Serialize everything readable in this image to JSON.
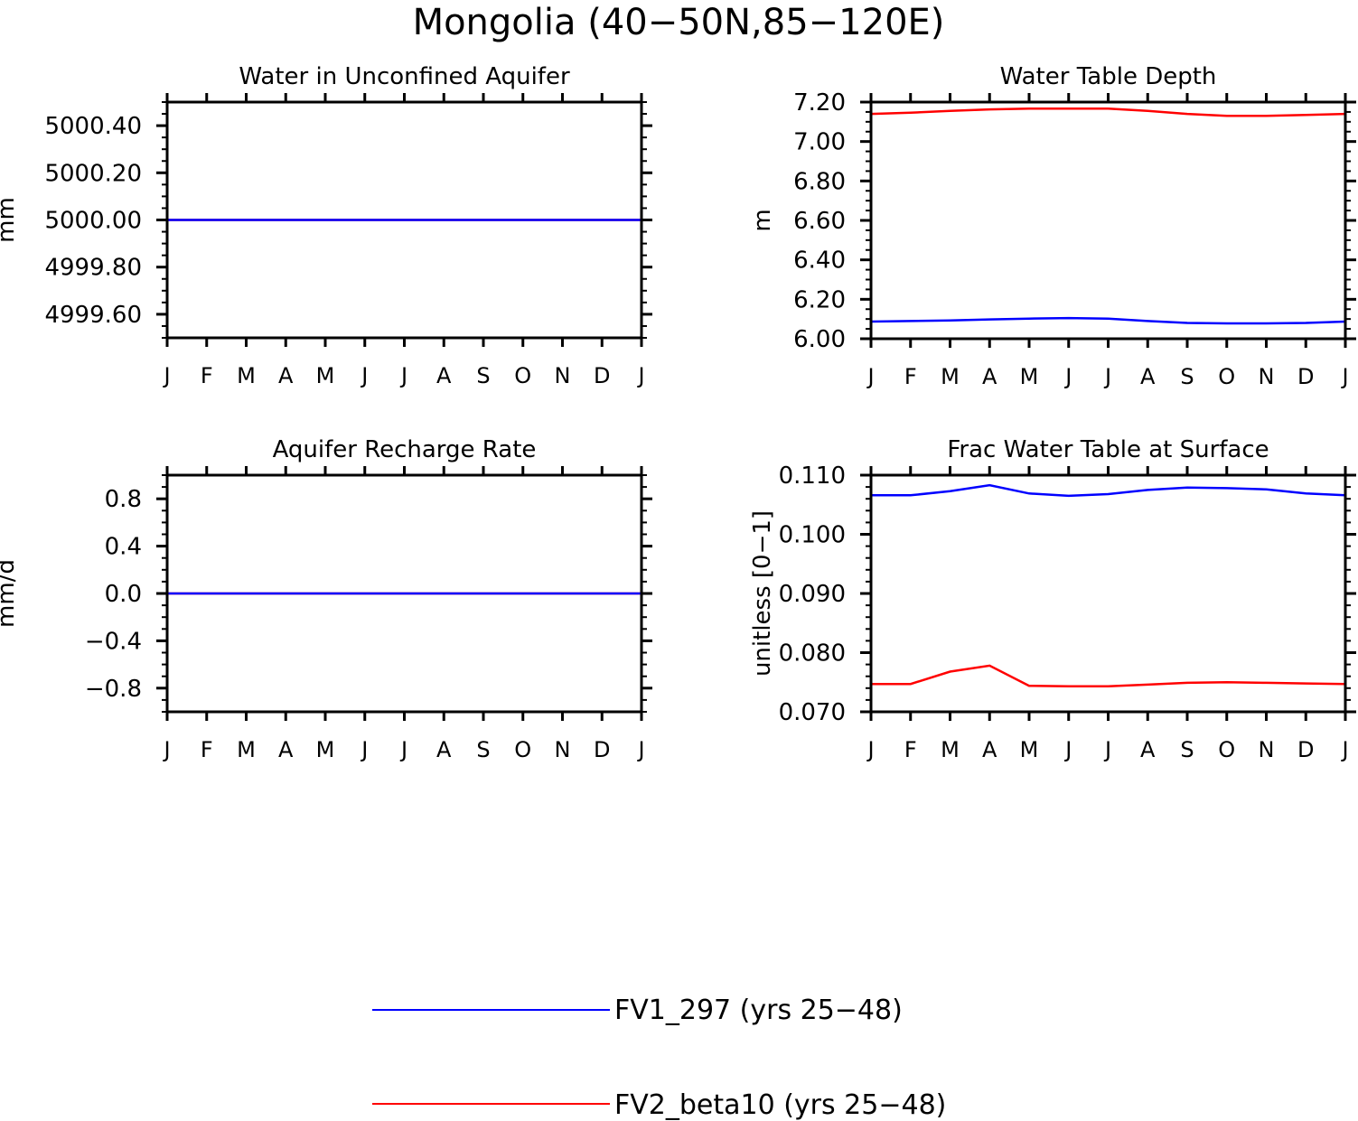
{
  "title": "Mongolia (40−50N,85−120E)",
  "legend": [
    {
      "label": "FV1_297 (yrs 25−48)",
      "color": "#0000ff"
    },
    {
      "label": "FV2_beta10 (yrs 25−48)",
      "color": "#ff0000"
    }
  ],
  "chart_data": [
    {
      "type": "line",
      "title": "Water in Unconfined Aquifer",
      "ylabel": "mm",
      "categories": [
        "J",
        "F",
        "M",
        "A",
        "M",
        "J",
        "J",
        "A",
        "S",
        "O",
        "N",
        "D",
        "J"
      ],
      "ylim": [
        4999.5,
        5000.5
      ],
      "yticks": [
        4999.6,
        4999.8,
        5000.0,
        5000.2,
        5000.4
      ],
      "ytick_labels": [
        "4999.60",
        "4999.80",
        "5000.00",
        "5000.20",
        "5000.40"
      ],
      "minor_per_major": 4,
      "series": [
        {
          "name": "FV2_beta10 (yrs 25−48)",
          "color": "#ff0000",
          "values": [
            5000,
            5000,
            5000,
            5000,
            5000,
            5000,
            5000,
            5000,
            5000,
            5000,
            5000,
            5000,
            5000
          ]
        },
        {
          "name": "FV1_297 (yrs 25−48)",
          "color": "#0000ff",
          "values": [
            5000,
            5000,
            5000,
            5000,
            5000,
            5000,
            5000,
            5000,
            5000,
            5000,
            5000,
            5000,
            5000
          ]
        }
      ]
    },
    {
      "type": "line",
      "title": "Water Table Depth",
      "ylabel": "m",
      "categories": [
        "J",
        "F",
        "M",
        "A",
        "M",
        "J",
        "J",
        "A",
        "S",
        "O",
        "N",
        "D",
        "J"
      ],
      "ylim": [
        6.0,
        7.2
      ],
      "yticks": [
        6.0,
        6.2,
        6.4,
        6.6,
        6.8,
        7.0,
        7.2
      ],
      "ytick_labels": [
        "6.00",
        "6.20",
        "6.40",
        "6.60",
        "6.80",
        "7.00",
        "7.20"
      ],
      "minor_per_major": 4,
      "series": [
        {
          "name": "FV1_297 (yrs 25−48)",
          "color": "#0000ff",
          "values": [
            6.087,
            6.09,
            6.093,
            6.098,
            6.102,
            6.105,
            6.102,
            6.09,
            6.08,
            6.078,
            6.078,
            6.08,
            6.087
          ]
        },
        {
          "name": "FV2_beta10 (yrs 25−48)",
          "color": "#ff0000",
          "values": [
            7.14,
            7.146,
            7.155,
            7.163,
            7.167,
            7.167,
            7.167,
            7.155,
            7.14,
            7.13,
            7.13,
            7.135,
            7.14
          ]
        }
      ]
    },
    {
      "type": "line",
      "title": "Aquifer Recharge Rate",
      "ylabel": "mm/d",
      "categories": [
        "J",
        "F",
        "M",
        "A",
        "M",
        "J",
        "J",
        "A",
        "S",
        "O",
        "N",
        "D",
        "J"
      ],
      "ylim": [
        -1.0,
        1.0
      ],
      "yticks": [
        -0.8,
        -0.4,
        0.0,
        0.4,
        0.8
      ],
      "ytick_labels": [
        "−0.8",
        "−0.4",
        "0.0",
        "0.4",
        "0.8"
      ],
      "minor_per_major": 4,
      "series": [
        {
          "name": "FV2_beta10 (yrs 25−48)",
          "color": "#ff0000",
          "values": [
            0,
            0,
            0,
            0,
            0,
            0,
            0,
            0,
            0,
            0,
            0,
            0,
            0
          ]
        },
        {
          "name": "FV1_297 (yrs 25−48)",
          "color": "#0000ff",
          "values": [
            0,
            0,
            0,
            0,
            0,
            0,
            0,
            0,
            0,
            0,
            0,
            0,
            0
          ]
        }
      ]
    },
    {
      "type": "line",
      "title": "Frac Water Table at Surface",
      "ylabel": "unitless [0−1]",
      "categories": [
        "J",
        "F",
        "M",
        "A",
        "M",
        "J",
        "J",
        "A",
        "S",
        "O",
        "N",
        "D",
        "J"
      ],
      "ylim": [
        0.07,
        0.11
      ],
      "yticks": [
        0.07,
        0.08,
        0.09,
        0.1,
        0.11
      ],
      "ytick_labels": [
        "0.070",
        "0.080",
        "0.090",
        "0.100",
        "0.110"
      ],
      "minor_per_major": 5,
      "series": [
        {
          "name": "FV1_297 (yrs 25−48)",
          "color": "#0000ff",
          "values": [
            0.1066,
            0.1066,
            0.1073,
            0.1083,
            0.1069,
            0.1065,
            0.1068,
            0.1075,
            0.1079,
            0.1078,
            0.1076,
            0.1069,
            0.1066
          ]
        },
        {
          "name": "FV2_beta10 (yrs 25−48)",
          "color": "#ff0000",
          "values": [
            0.0747,
            0.0747,
            0.0768,
            0.0778,
            0.0744,
            0.0743,
            0.0743,
            0.0746,
            0.0749,
            0.075,
            0.0749,
            0.0748,
            0.0747
          ]
        }
      ]
    }
  ]
}
